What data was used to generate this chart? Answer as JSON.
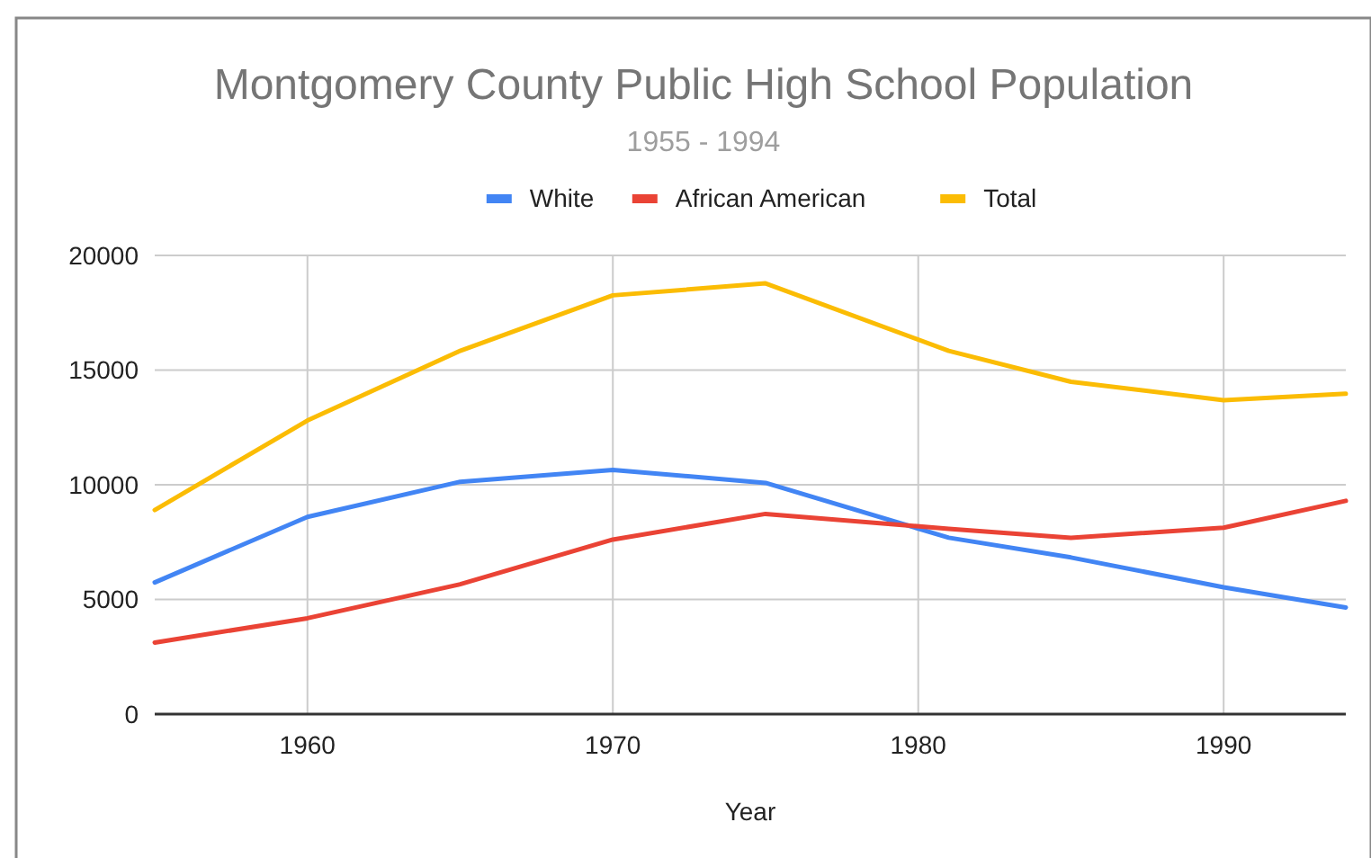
{
  "chart_data": {
    "type": "line",
    "title": "Montgomery County Public High School Population",
    "subtitle": "1955 - 1994",
    "xlabel": "Year",
    "x": [
      1955,
      1960,
      1965,
      1970,
      1975,
      1981,
      1985,
      1990,
      1994
    ],
    "series": [
      {
        "name": "White",
        "color": "#4285f4",
        "values": [
          5740,
          8600,
          10130,
          10650,
          10080,
          7690,
          6830,
          5530,
          4650
        ]
      },
      {
        "name": "African American",
        "color": "#ea4335",
        "values": [
          3120,
          4180,
          5660,
          7610,
          8730,
          8080,
          7690,
          8130,
          9300
        ]
      },
      {
        "name": "Total",
        "color": "#fbbc04",
        "values": [
          8900,
          12800,
          15840,
          18260,
          18780,
          15840,
          14490,
          13690,
          13970
        ]
      }
    ],
    "xlim": [
      1955,
      1994
    ],
    "xticks": [
      1960,
      1970,
      1980,
      1990
    ],
    "ylim": [
      0,
      20000
    ],
    "yticks": [
      0,
      5000,
      10000,
      15000,
      20000
    ],
    "grid": true,
    "legend": "top",
    "marker": "none",
    "line_style": "solid"
  }
}
